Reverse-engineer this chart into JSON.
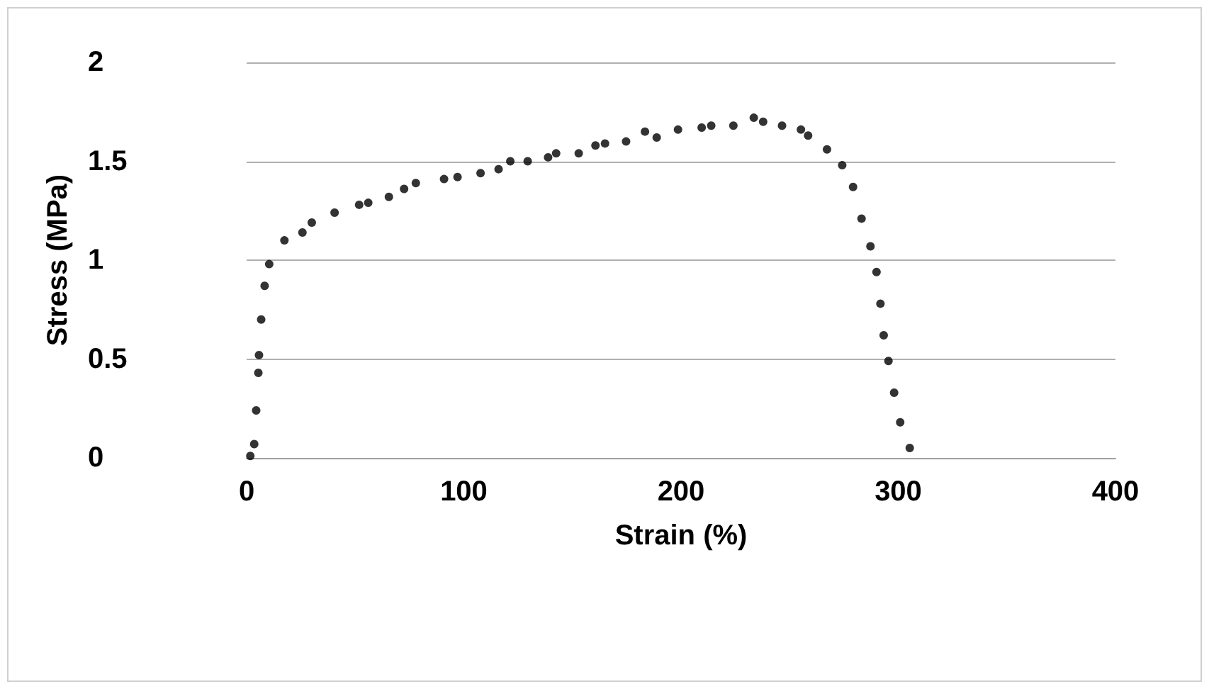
{
  "chart_data": {
    "type": "scatter",
    "xlabel": "Strain (%)",
    "ylabel": "Stress (MPa)",
    "xlim": [
      0,
      400
    ],
    "xticks": [
      0,
      100,
      200,
      300,
      400
    ],
    "ylim": [
      0,
      2
    ],
    "yticks": [
      0,
      0.5,
      1,
      1.5,
      2
    ],
    "grid": "y",
    "marker": "circle",
    "series": [
      {
        "color": "#000000",
        "x": [
          1.7,
          3.5,
          4.4,
          5.4,
          5.7,
          6.7,
          8.3,
          10.4,
          17.4,
          25.7,
          30,
          40.5,
          51.8,
          56,
          65.5,
          72.5,
          77.9,
          90.9,
          97.1,
          107.7,
          116,
          121.4,
          129.4,
          138.8,
          142.5,
          152.9,
          160.6,
          165,
          174.7,
          183.4,
          188.8,
          198.6,
          209.5,
          213.9,
          224.1,
          233.5,
          237.8,
          246.5,
          255.2,
          258.5,
          267.2,
          274.2,
          279.2,
          283.1,
          287.2,
          290,
          291.8,
          293.3,
          295.5,
          298.1,
          300.9,
          305.3
        ],
        "values": [
          0.01,
          0.07,
          0.24,
          0.43,
          0.52,
          0.7,
          0.87,
          0.98,
          1.1,
          1.14,
          1.19,
          1.24,
          1.28,
          1.29,
          1.32,
          1.36,
          1.39,
          1.41,
          1.42,
          1.44,
          1.46,
          1.5,
          1.5,
          1.52,
          1.54,
          1.54,
          1.58,
          1.59,
          1.6,
          1.65,
          1.62,
          1.66,
          1.67,
          1.68,
          1.68,
          1.72,
          1.7,
          1.68,
          1.66,
          1.63,
          1.56,
          1.48,
          1.37,
          1.21,
          1.07,
          0.94,
          0.78,
          0.62,
          0.49,
          0.33,
          0.18,
          0.05
        ]
      }
    ]
  }
}
